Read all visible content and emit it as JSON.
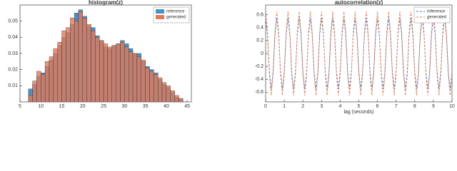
{
  "chart_data": [
    {
      "type": "histogram",
      "title": "histogram(z)",
      "bins": [
        7,
        8,
        9,
        10,
        11,
        12,
        13,
        14,
        15,
        16,
        17,
        18,
        19,
        20,
        21,
        22,
        23,
        24,
        25,
        26,
        27,
        28,
        29,
        30,
        31,
        32,
        33,
        34,
        35,
        36,
        37,
        38,
        39,
        40,
        41,
        42,
        43,
        44
      ],
      "series": [
        {
          "name": "reference",
          "color": "#4a90c8",
          "values": [
            0.008,
            0.011,
            0.016,
            0.018,
            0.022,
            0.026,
            0.03,
            0.035,
            0.04,
            0.043,
            0.048,
            0.055,
            0.057,
            0.053,
            0.047,
            0.046,
            0.041,
            0.038,
            0.034,
            0.033,
            0.035,
            0.036,
            0.038,
            0.036,
            0.033,
            0.03,
            0.03,
            0.025,
            0.022,
            0.02,
            0.018,
            0.014,
            0.011,
            0.009,
            0.006,
            0.003,
            0.002
          ]
        },
        {
          "name": "generated",
          "color": "#e07a5a",
          "values": [
            0.004,
            0.013,
            0.019,
            0.017,
            0.025,
            0.028,
            0.033,
            0.037,
            0.044,
            0.046,
            0.052,
            0.05,
            0.056,
            0.052,
            0.048,
            0.044,
            0.04,
            0.038,
            0.036,
            0.034,
            0.035,
            0.036,
            0.037,
            0.034,
            0.031,
            0.03,
            0.028,
            0.026,
            0.021,
            0.019,
            0.017,
            0.015,
            0.012,
            0.01,
            0.007,
            0.004,
            0.002
          ]
        }
      ],
      "xlim": [
        5,
        46
      ],
      "xticks": [
        5,
        10,
        15,
        20,
        25,
        30,
        35,
        40,
        45
      ],
      "ylim": [
        0,
        0.06
      ],
      "yticks": [
        0.01,
        0.02,
        0.03,
        0.04,
        0.05
      ],
      "legend": "upper right"
    },
    {
      "type": "line",
      "title": "autocorrelation(z)",
      "x_label": "lag (seconds)",
      "x": [
        0,
        0.1,
        0.2,
        0.3,
        0.4,
        0.5,
        0.6,
        0.7,
        0.8,
        0.9,
        1,
        1.1,
        1.2,
        1.3,
        1.4,
        1.5,
        1.6,
        1.7,
        1.8,
        1.9,
        2,
        2.1,
        2.2,
        2.3,
        2.4,
        2.5,
        2.6,
        2.7,
        2.8,
        2.9,
        3,
        3.1,
        3.2,
        3.3,
        3.4,
        3.5,
        3.6,
        3.7,
        3.8,
        3.9,
        4,
        4.1,
        4.2,
        4.3,
        4.4,
        4.5,
        4.6,
        4.7,
        4.8,
        4.9,
        5,
        5.1,
        5.2,
        5.3,
        5.4,
        5.5,
        5.6,
        5.7,
        5.8,
        5.9,
        6,
        6.1,
        6.2,
        6.3,
        6.4,
        6.5,
        6.6,
        6.7,
        6.8,
        6.9,
        7,
        7.1,
        7.2,
        7.3,
        7.4,
        7.5,
        7.6,
        7.7,
        7.8,
        7.9,
        8,
        8.1,
        8.2,
        8.3,
        8.4,
        8.5,
        8.6,
        8.7,
        8.8,
        8.9,
        9,
        9.1,
        9.2,
        9.3,
        9.4,
        9.5,
        9.6,
        9.7,
        9.8,
        9.9,
        10
      ],
      "series": [
        {
          "name": "reference",
          "color": "#4a78a8",
          "linestyle": "dashed",
          "values": [
            0.55,
            0.28,
            -0.28,
            -0.55,
            -0.28,
            0.28,
            0.55,
            0.28,
            -0.28,
            -0.55,
            -0.28,
            0.28,
            0.55,
            0.28,
            -0.28,
            -0.55,
            -0.28,
            0.28,
            0.55,
            0.28,
            -0.28,
            -0.55,
            -0.28,
            0.28,
            0.55,
            0.28,
            -0.28,
            -0.55,
            -0.28,
            0.28,
            0.55,
            0.28,
            -0.28,
            -0.55,
            -0.28,
            0.28,
            0.55,
            0.28,
            -0.28,
            -0.55,
            -0.28,
            0.28,
            0.55,
            0.28,
            -0.28,
            -0.55,
            -0.28,
            0.28,
            0.55,
            0.28,
            -0.28,
            -0.55,
            -0.28,
            0.28,
            0.55,
            0.28,
            -0.28,
            -0.55,
            -0.28,
            0.28,
            0.55,
            0.28,
            -0.28,
            -0.55,
            -0.28,
            0.28,
            0.55,
            0.28,
            -0.28,
            -0.55,
            -0.28,
            0.28,
            0.55,
            0.28,
            -0.28,
            -0.55,
            -0.28,
            0.28,
            0.55,
            0.28,
            -0.28,
            -0.55,
            -0.28,
            0.28,
            0.55,
            0.28,
            -0.28,
            -0.55,
            -0.28,
            0.28,
            0.55,
            0.28,
            -0.28,
            -0.55,
            -0.28,
            0.28,
            0.55,
            0.28,
            -0.28,
            -0.55,
            -0.28
          ]
        },
        {
          "name": "generated",
          "color": "#e07a5a",
          "linestyle": "dashed",
          "values": [
            0.65,
            0.33,
            -0.33,
            -0.65,
            -0.33,
            0.33,
            0.65,
            0.33,
            -0.33,
            -0.65,
            -0.33,
            0.33,
            0.65,
            0.33,
            -0.33,
            -0.65,
            -0.33,
            0.33,
            0.65,
            0.33,
            -0.33,
            -0.65,
            -0.33,
            0.33,
            0.65,
            0.33,
            -0.33,
            -0.65,
            -0.33,
            0.33,
            0.65,
            0.33,
            -0.33,
            -0.65,
            -0.33,
            0.33,
            0.65,
            0.33,
            -0.33,
            -0.65,
            -0.33,
            0.33,
            0.65,
            0.33,
            -0.33,
            -0.65,
            -0.33,
            0.33,
            0.65,
            0.33,
            -0.33,
            -0.65,
            -0.33,
            0.33,
            0.65,
            0.33,
            -0.33,
            -0.65,
            -0.33,
            0.33,
            0.65,
            0.33,
            -0.33,
            -0.65,
            -0.33,
            0.33,
            0.65,
            0.33,
            -0.33,
            -0.65,
            -0.33,
            0.33,
            0.65,
            0.33,
            -0.33,
            -0.65,
            -0.33,
            0.33,
            0.65,
            0.33,
            -0.33,
            -0.65,
            -0.33,
            0.33,
            0.65,
            0.33,
            -0.33,
            -0.65,
            -0.33,
            0.33,
            0.65,
            0.33,
            -0.33,
            -0.65,
            -0.33,
            0.33,
            0.65,
            0.33,
            -0.33,
            -0.65,
            -0.33
          ]
        }
      ],
      "xlim": [
        0,
        10
      ],
      "xticks": [
        0,
        1,
        2,
        3,
        4,
        5,
        6,
        7,
        8,
        9,
        10
      ],
      "ylim": [
        -0.75,
        0.75
      ],
      "yticks": [
        -0.6,
        -0.4,
        -0.2,
        0,
        0.2,
        0.4,
        0.6
      ],
      "legend": "upper right"
    }
  ]
}
